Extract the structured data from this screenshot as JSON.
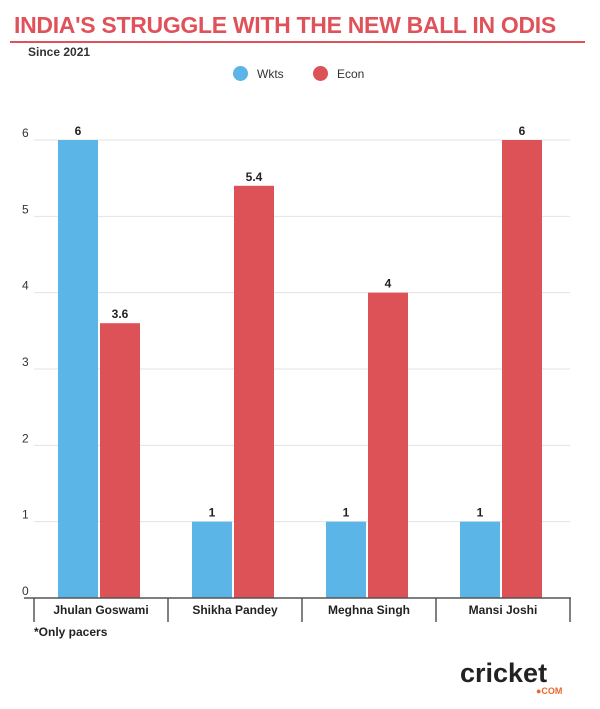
{
  "header": {
    "title": "INDIA'S STRUGGLE WITH THE NEW BALL IN ODIS",
    "subtitle": "Since 2021"
  },
  "colors": {
    "accent": "#e0525a",
    "wkts": "#5bb5e6",
    "econ": "#dd5257"
  },
  "chart_data": {
    "type": "bar",
    "categories": [
      "Jhulan Goswami",
      "Shikha Pandey",
      "Meghna Singh",
      "Mansi Joshi"
    ],
    "series": [
      {
        "name": "Wkts",
        "values": [
          6,
          1,
          1,
          1
        ],
        "data_labels": [
          "6",
          "1",
          "1",
          "1"
        ]
      },
      {
        "name": "Econ",
        "values": [
          3.6,
          5.4,
          4,
          6
        ],
        "data_labels": [
          "3.6",
          "5.4",
          "4",
          "6"
        ]
      }
    ],
    "yticks": [
      "0",
      "1",
      "2",
      "3",
      "4",
      "5",
      "6"
    ],
    "ylim": [
      0,
      6
    ],
    "grid": true,
    "legend": "top-center",
    "xlabel": "",
    "ylabel": ""
  },
  "footnote": "*Only pacers",
  "logo": {
    "word": "cricket",
    "suffix": "●COM"
  }
}
